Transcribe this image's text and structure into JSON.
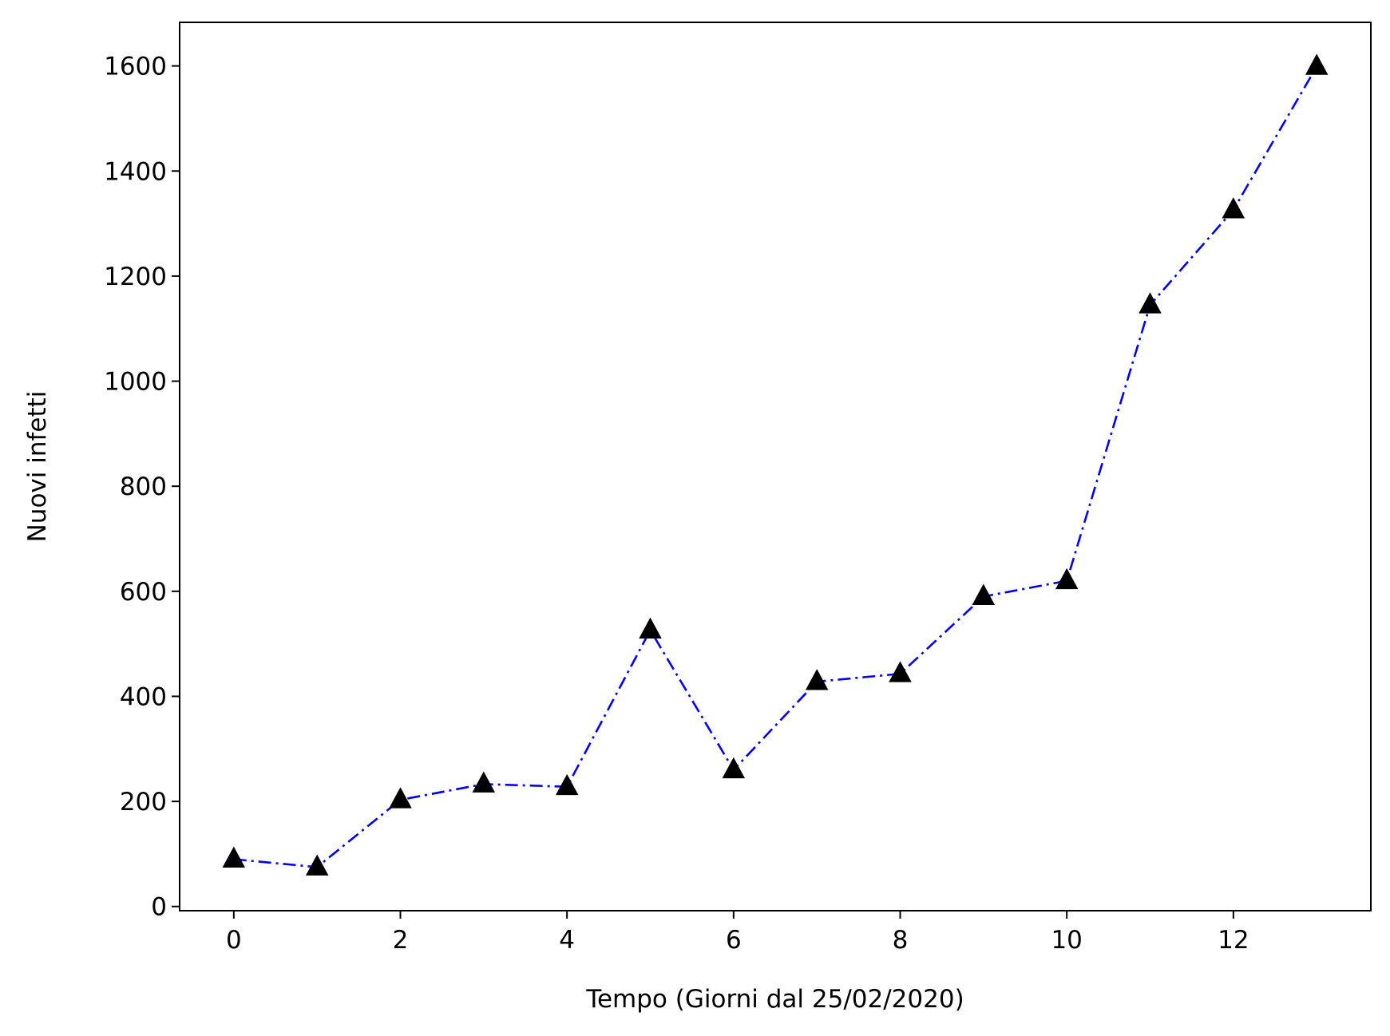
{
  "chart_data": {
    "type": "line",
    "title": "",
    "xlabel": "Tempo (Giorni dal 25/02/2020)",
    "ylabel": "Nuovi infetti",
    "xlim": [
      -0.65,
      13.65
    ],
    "ylim": [
      -8,
      1683
    ],
    "xticks": [
      0,
      2,
      4,
      6,
      8,
      10,
      12
    ],
    "yticks": [
      0,
      200,
      400,
      600,
      800,
      1000,
      1200,
      1400,
      1600
    ],
    "grid": false,
    "legend": "none",
    "series": [
      {
        "x": [
          0,
          1,
          2,
          3,
          4,
          5,
          6,
          7,
          8,
          9,
          10,
          11,
          12,
          13
        ],
        "values": [
          90,
          75,
          203,
          233,
          228,
          526,
          260,
          428,
          443,
          590,
          620,
          1145,
          1326,
          1599
        ],
        "line_color": "#0000ff",
        "line_style": "dash-dot",
        "marker": "triangle-up",
        "marker_color": "#000000"
      }
    ]
  }
}
